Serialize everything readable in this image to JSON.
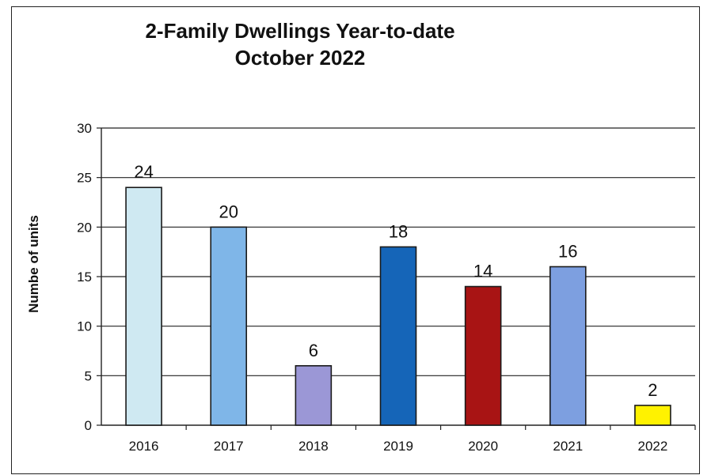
{
  "chart_data": {
    "type": "bar",
    "title": "2-Family Dwellings Year-to-date",
    "subtitle": "October 2022",
    "xlabel": "",
    "ylabel": "Numbe of units",
    "categories": [
      "2016",
      "2017",
      "2018",
      "2019",
      "2020",
      "2021",
      "2022"
    ],
    "values": [
      24,
      20,
      6,
      18,
      14,
      16,
      2
    ],
    "data_labels": [
      "24",
      "20",
      "6",
      "18",
      "14",
      "16",
      "2"
    ],
    "yticks": [
      "0",
      "5",
      "10",
      "15",
      "20",
      "25",
      "30"
    ],
    "ylim": [
      0,
      30
    ],
    "grid": true,
    "legend": "none",
    "colors": [
      "#cfe9f2",
      "#7fb6e8",
      "#9b97d6",
      "#1565b8",
      "#a81414",
      "#7d9fe0",
      "#fff200"
    ]
  }
}
